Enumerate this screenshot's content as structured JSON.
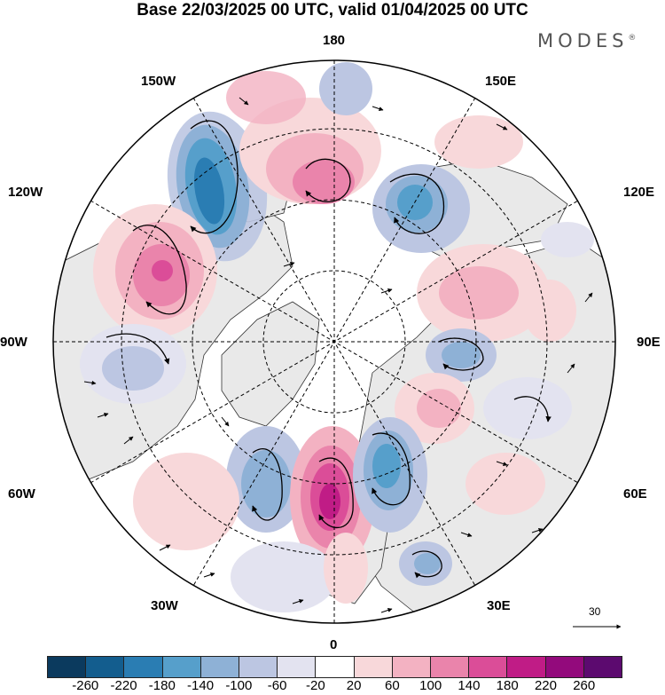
{
  "title": "Base 22/03/2025 00 UTC, valid 01/04/2025 00 UTC",
  "brand": "MODES",
  "brand_mark": "®",
  "longitude_labels": {
    "top": "180",
    "top_left": "150W",
    "top_right": "150E",
    "upper_left": "120W",
    "upper_right": "120E",
    "left": "90W",
    "right": "90E",
    "lower_left": "60W",
    "lower_right": "60E",
    "bottom_left": "30W",
    "bottom_right": "30E",
    "bottom": "0"
  },
  "reference_vector_label": "30",
  "legend": {
    "ticks": [
      "-260",
      "-220",
      "-180",
      "-140",
      "-100",
      "-60",
      "-20",
      "20",
      "60",
      "100",
      "140",
      "180",
      "220",
      "260"
    ],
    "colors": [
      "#0b3a5e",
      "#135d8e",
      "#2a7db3",
      "#569fcb",
      "#8eb1d6",
      "#bcc6e2",
      "#e3e3f0",
      "#ffffff",
      "#f8d8da",
      "#f3b2c2",
      "#ea84ab",
      "#db4d98",
      "#c01c86",
      "#930a7c",
      "#5c0a6f"
    ]
  },
  "colors": {
    "land": "#e9e9e9",
    "ocean": "#ffffff",
    "coast": "#333333",
    "grid": "#000000"
  }
}
